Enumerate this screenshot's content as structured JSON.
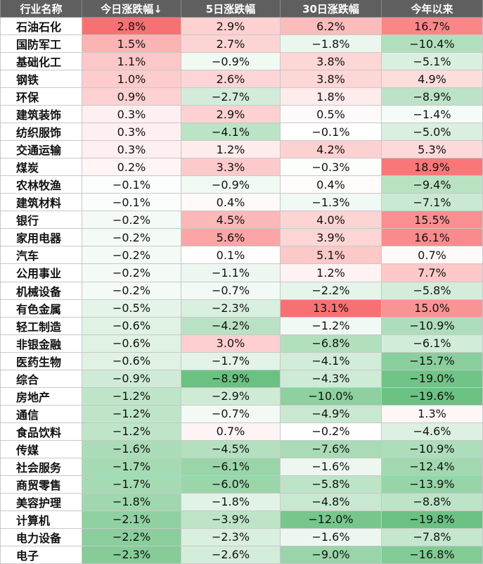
{
  "chart_data": {
    "type": "table",
    "columns": [
      "行业名称",
      "今日涨跌幅↓",
      "5日涨跌幅",
      "30日涨跌幅",
      "今年以来"
    ],
    "rows": [
      {
        "name": "石油石化",
        "values": [
          "2.8%",
          "2.9%",
          "6.2%",
          "16.7%"
        ]
      },
      {
        "name": "国防军工",
        "values": [
          "1.5%",
          "2.7%",
          "−1.8%",
          "−10.4%"
        ]
      },
      {
        "name": "基础化工",
        "values": [
          "1.1%",
          "−0.9%",
          "3.8%",
          "−5.1%"
        ]
      },
      {
        "name": "钢铁",
        "values": [
          "1.0%",
          "2.6%",
          "3.8%",
          "4.9%"
        ]
      },
      {
        "name": "环保",
        "values": [
          "0.9%",
          "−2.7%",
          "1.8%",
          "−8.9%"
        ]
      },
      {
        "name": "建筑装饰",
        "values": [
          "0.3%",
          "2.9%",
          "0.5%",
          "−1.4%"
        ]
      },
      {
        "name": "纺织服饰",
        "values": [
          "0.3%",
          "−4.1%",
          "−0.1%",
          "−5.0%"
        ]
      },
      {
        "name": "交通运输",
        "values": [
          "0.3%",
          "1.2%",
          "4.2%",
          "5.3%"
        ]
      },
      {
        "name": "煤炭",
        "values": [
          "0.2%",
          "3.3%",
          "−0.3%",
          "18.9%"
        ]
      },
      {
        "name": "农林牧渔",
        "values": [
          "−0.1%",
          "−0.9%",
          "0.4%",
          "−9.4%"
        ]
      },
      {
        "name": "建筑材料",
        "values": [
          "−0.1%",
          "0.4%",
          "−1.3%",
          "−7.1%"
        ]
      },
      {
        "name": "银行",
        "values": [
          "−0.2%",
          "4.5%",
          "4.0%",
          "15.5%"
        ]
      },
      {
        "name": "家用电器",
        "values": [
          "−0.2%",
          "5.6%",
          "3.9%",
          "16.1%"
        ]
      },
      {
        "name": "汽车",
        "values": [
          "−0.2%",
          "0.1%",
          "5.1%",
          "0.7%"
        ]
      },
      {
        "name": "公用事业",
        "values": [
          "−0.2%",
          "−1.1%",
          "1.2%",
          "7.7%"
        ]
      },
      {
        "name": "机械设备",
        "values": [
          "−0.2%",
          "−0.7%",
          "−2.2%",
          "−5.8%"
        ]
      },
      {
        "name": "有色金属",
        "values": [
          "−0.5%",
          "−2.3%",
          "13.1%",
          "15.0%"
        ]
      },
      {
        "name": "轻工制造",
        "values": [
          "−0.6%",
          "−4.2%",
          "−1.2%",
          "−10.9%"
        ]
      },
      {
        "name": "非银金融",
        "values": [
          "−0.6%",
          "3.0%",
          "−6.8%",
          "−6.1%"
        ]
      },
      {
        "name": "医药生物",
        "values": [
          "−0.6%",
          "−1.7%",
          "−4.1%",
          "−15.7%"
        ]
      },
      {
        "name": "综合",
        "values": [
          "−0.9%",
          "−8.9%",
          "−4.3%",
          "−19.0%"
        ]
      },
      {
        "name": "房地产",
        "values": [
          "−1.2%",
          "−2.9%",
          "−10.0%",
          "−19.6%"
        ]
      },
      {
        "name": "通信",
        "values": [
          "−1.2%",
          "−0.7%",
          "−4.9%",
          "1.3%"
        ]
      },
      {
        "name": "食品饮料",
        "values": [
          "−1.2%",
          "0.7%",
          "−0.2%",
          "−4.6%"
        ]
      },
      {
        "name": "传媒",
        "values": [
          "−1.6%",
          "−4.5%",
          "−7.6%",
          "−10.9%"
        ]
      },
      {
        "name": "社会服务",
        "values": [
          "−1.7%",
          "−6.1%",
          "−1.6%",
          "−12.4%"
        ]
      },
      {
        "name": "商贸零售",
        "values": [
          "−1.7%",
          "−6.0%",
          "−5.8%",
          "−13.9%"
        ]
      },
      {
        "name": "美容护理",
        "values": [
          "−1.8%",
          "−1.8%",
          "−4.8%",
          "−8.8%"
        ]
      },
      {
        "name": "计算机",
        "values": [
          "−2.1%",
          "−3.9%",
          "−12.0%",
          "−19.8%"
        ]
      },
      {
        "name": "电力设备",
        "values": [
          "−2.2%",
          "−2.3%",
          "−1.6%",
          "−7.8%"
        ]
      },
      {
        "name": "电子",
        "values": [
          "−2.3%",
          "−2.6%",
          "−9.0%",
          "−16.8%"
        ]
      }
    ],
    "colors": {
      "positive": "#f8696b",
      "negative": "#63be7b",
      "neutral": "#ffffff",
      "header_bg": "#5f5f5f",
      "header_text": "#ffffff"
    }
  }
}
